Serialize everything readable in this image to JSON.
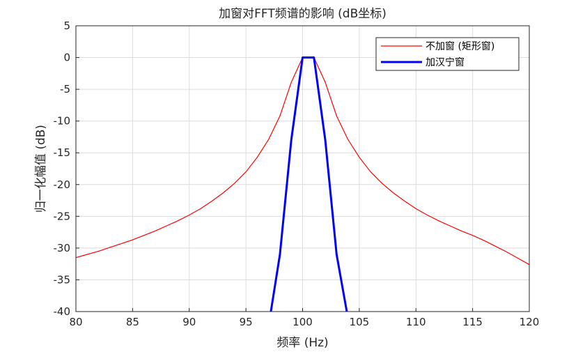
{
  "chart_data": {
    "type": "line",
    "title": "加窗对FFT频谱的影响 (dB坐标)",
    "xlabel": "频率 (Hz)",
    "ylabel": "归一化幅值 (dB)",
    "xlim": [
      80,
      120
    ],
    "ylim": [
      -40,
      5
    ],
    "xticks": [
      80,
      85,
      90,
      95,
      100,
      105,
      110,
      115,
      120
    ],
    "yticks": [
      5,
      0,
      -5,
      -10,
      -15,
      -20,
      -25,
      -30,
      -35,
      -40
    ],
    "grid": true,
    "legend_position": "top-right",
    "series": [
      {
        "name": "不加窗 (矩形窗)",
        "color": "#ff0000",
        "x": [
          80,
          81,
          82,
          83,
          84,
          85,
          86,
          87,
          88,
          89,
          90,
          91,
          92,
          93,
          94,
          95,
          96,
          97,
          98,
          99,
          100,
          101,
          102,
          103,
          104,
          105,
          106,
          107,
          108,
          109,
          110,
          111,
          112,
          113,
          114,
          115,
          116,
          117,
          118,
          119,
          120
        ],
        "y": [
          -31.5,
          -31.0,
          -30.5,
          -29.9,
          -29.3,
          -28.7,
          -28.0,
          -27.3,
          -26.5,
          -25.7,
          -24.8,
          -23.8,
          -22.6,
          -21.3,
          -19.8,
          -18.0,
          -15.7,
          -12.9,
          -9.2,
          -3.9,
          0,
          0,
          -3.9,
          -9.2,
          -12.9,
          -15.7,
          -18.0,
          -19.8,
          -21.3,
          -22.6,
          -23.8,
          -24.8,
          -25.7,
          -26.5,
          -27.3,
          -28.0,
          -28.8,
          -29.7,
          -30.6,
          -31.6,
          -32.6
        ]
      },
      {
        "name": "加汉宁窗",
        "color": "#0000ff",
        "x": [
          97.2,
          98,
          99,
          100,
          101,
          102,
          103,
          103.9
        ],
        "y": [
          -40,
          -31,
          -13,
          0,
          0,
          -13,
          -31,
          -40
        ]
      }
    ]
  }
}
